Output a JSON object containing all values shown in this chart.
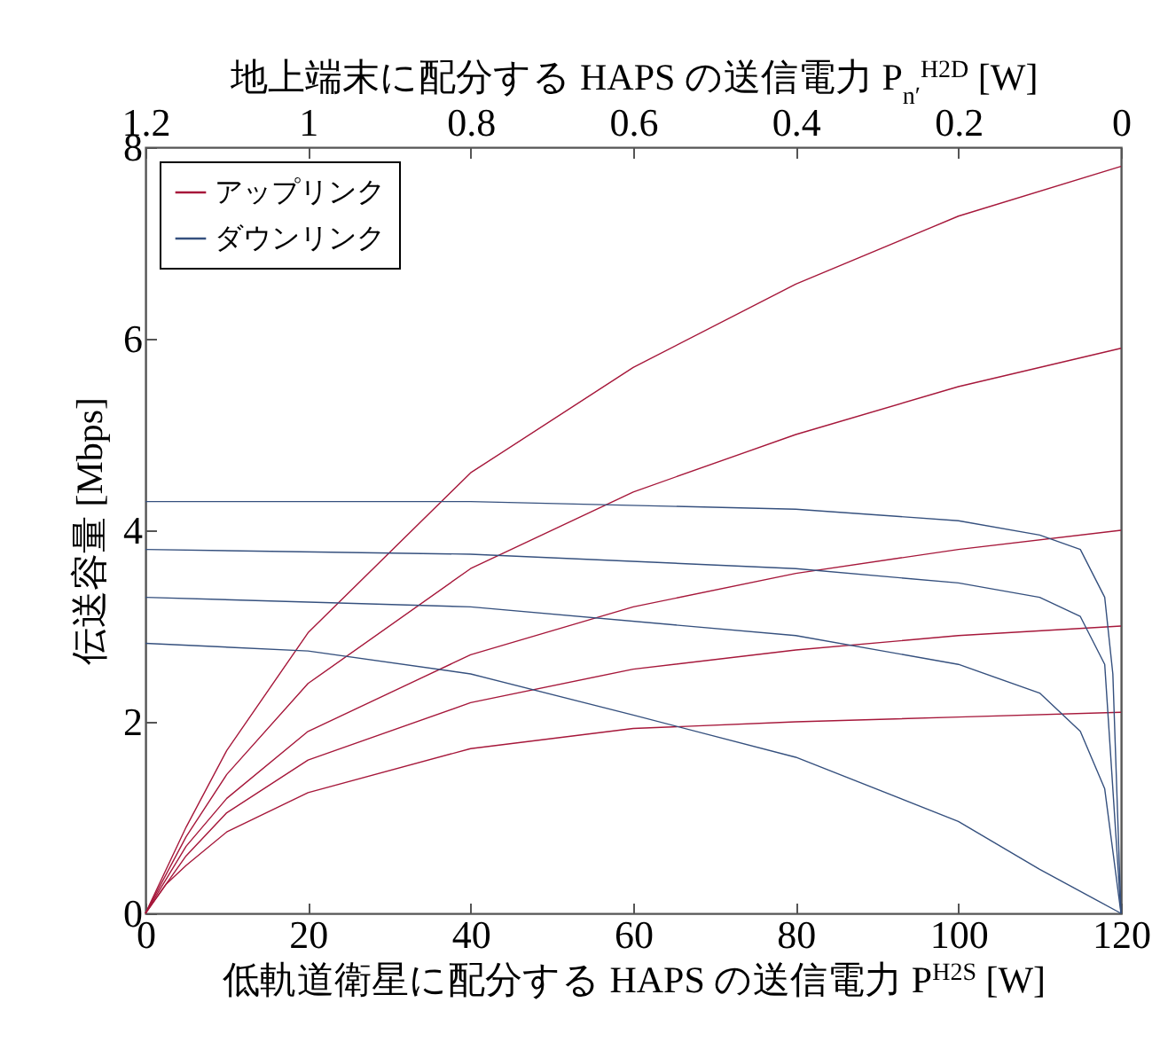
{
  "chart_data": {
    "type": "line",
    "xlabel": "低軌道衛星に配分する HAPS の送信電力 P$^{H2S}$ [W]",
    "x2label": "地上端末に配分する HAPS の送信電力 P$_{n′}$$^{H2D}$ [W]",
    "ylabel": "伝送容量 [Mbps]",
    "xlim": [
      0,
      120
    ],
    "xticks": [
      0,
      20,
      40,
      60,
      80,
      100,
      120
    ],
    "x2lim": [
      1.2,
      0
    ],
    "x2ticks": [
      1.2,
      1,
      0.8,
      0.6,
      0.4,
      0.2,
      0
    ],
    "ylim": [
      0,
      8
    ],
    "yticks": [
      0,
      2,
      4,
      6,
      8
    ],
    "legend": "top left",
    "grid": false,
    "line_style": "solid",
    "series": [
      {
        "name": "アップリンク",
        "color": "#a6173a",
        "x": [
          0,
          5,
          10,
          20,
          40,
          60,
          80,
          100,
          120
        ],
        "values": [
          0,
          0.9,
          1.7,
          2.93,
          4.6,
          5.7,
          6.57,
          7.28,
          7.8
        ]
      },
      {
        "color": "#a6173a",
        "x": [
          0,
          5,
          10,
          20,
          40,
          60,
          80,
          100,
          120
        ],
        "values": [
          0,
          0.8,
          1.45,
          2.4,
          3.6,
          4.4,
          5.0,
          5.5,
          5.9
        ]
      },
      {
        "color": "#a6173a",
        "x": [
          0,
          5,
          10,
          20,
          40,
          60,
          80,
          100,
          120
        ],
        "values": [
          0,
          0.7,
          1.2,
          1.9,
          2.7,
          3.2,
          3.55,
          3.8,
          4.0
        ]
      },
      {
        "color": "#a6173a",
        "x": [
          0,
          5,
          10,
          20,
          40,
          60,
          80,
          100,
          120
        ],
        "values": [
          0,
          0.6,
          1.05,
          1.6,
          2.2,
          2.55,
          2.75,
          2.9,
          3.0
        ]
      },
      {
        "color": "#a6173a",
        "x": [
          0,
          2.5,
          5,
          10,
          20,
          40,
          60,
          80,
          100,
          120
        ],
        "values": [
          0,
          0.3,
          0.5,
          0.85,
          1.26,
          1.72,
          1.93,
          2.0,
          2.05,
          2.1
        ]
      },
      {
        "name": "ダウンリンク",
        "color": "#35507e",
        "x": [
          0,
          40,
          80,
          100,
          110,
          115,
          118,
          119,
          120
        ],
        "values": [
          4.3,
          4.3,
          4.22,
          4.1,
          3.95,
          3.8,
          3.3,
          2.5,
          0
        ]
      },
      {
        "color": "#35507e",
        "x": [
          0,
          40,
          80,
          100,
          110,
          115,
          118,
          120
        ],
        "values": [
          3.8,
          3.75,
          3.6,
          3.45,
          3.3,
          3.1,
          2.6,
          0
        ]
      },
      {
        "color": "#35507e",
        "x": [
          0,
          40,
          80,
          100,
          110,
          115,
          118,
          120
        ],
        "values": [
          3.3,
          3.2,
          2.9,
          2.6,
          2.3,
          1.9,
          1.3,
          0
        ]
      },
      {
        "color": "#35507e",
        "x": [
          0,
          20,
          40,
          60,
          80,
          100,
          110,
          120
        ],
        "values": [
          2.82,
          2.74,
          2.5,
          2.07,
          1.63,
          0.96,
          0.46,
          0
        ]
      }
    ]
  }
}
